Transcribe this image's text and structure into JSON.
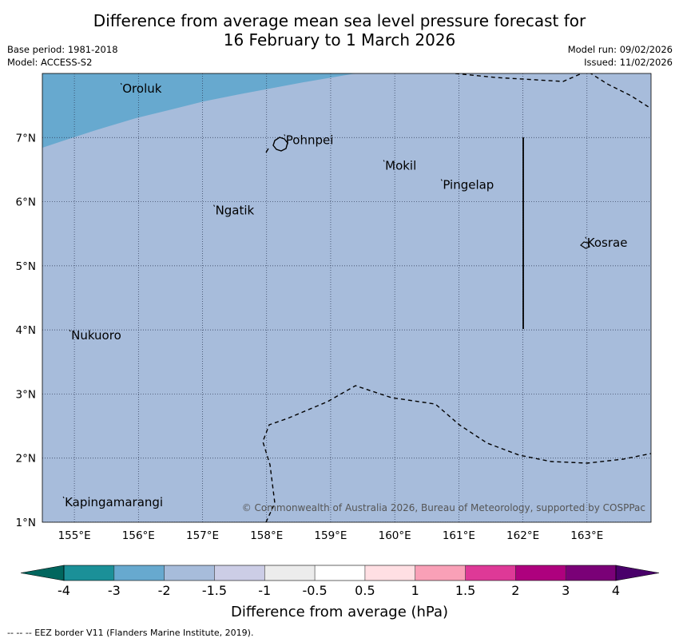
{
  "title": {
    "line1": "Difference from average mean sea level pressure forecast for",
    "line2": "16 February to 1 March 2026"
  },
  "meta": {
    "base_period": "Base period: 1981-2018",
    "model": "Model: ACCESS-S2",
    "model_run": "Model run: 09/02/2026",
    "issued": "Issued: 11/02/2026"
  },
  "map": {
    "lon_range": [
      154.5,
      164.0
    ],
    "lat_range": [
      1.0,
      8.0
    ],
    "lon_ticks": [
      {
        "value": 155,
        "label": "155°E"
      },
      {
        "value": 156,
        "label": "156°E"
      },
      {
        "value": 157,
        "label": "157°E"
      },
      {
        "value": 158,
        "label": "158°E"
      },
      {
        "value": 159,
        "label": "159°E"
      },
      {
        "value": 160,
        "label": "160°E"
      },
      {
        "value": 161,
        "label": "161°E"
      },
      {
        "value": 162,
        "label": "162°E"
      },
      {
        "value": 163,
        "label": "163°E"
      }
    ],
    "lat_ticks": [
      {
        "value": 1,
        "label": "1°N"
      },
      {
        "value": 2,
        "label": "2°N"
      },
      {
        "value": 3,
        "label": "3°N"
      },
      {
        "value": 4,
        "label": "4°N"
      },
      {
        "value": 5,
        "label": "5°N"
      },
      {
        "value": 6,
        "label": "6°N"
      },
      {
        "value": 7,
        "label": "7°N"
      }
    ],
    "places": [
      {
        "name": "Oroluk",
        "lon": 155.75,
        "lat": 7.7
      },
      {
        "name": "Pohnpei",
        "lon": 158.3,
        "lat": 6.9
      },
      {
        "name": "Mokil",
        "lon": 159.85,
        "lat": 6.5
      },
      {
        "name": "Pingelap",
        "lon": 160.75,
        "lat": 6.2
      },
      {
        "name": "Ngatik",
        "lon": 157.2,
        "lat": 5.8
      },
      {
        "name": "Kosrae",
        "lon": 163.0,
        "lat": 5.3
      },
      {
        "name": "Nukuoro",
        "lon": 154.95,
        "lat": 3.85
      },
      {
        "name": "Kapingamarangi",
        "lon": 154.85,
        "lat": 1.25
      }
    ],
    "fill_values_hPa": {
      "background": -1.75,
      "northwest_region": -2.5
    },
    "credit": "© Commonwealth of Australia 2026, Bureau of Meteorology, supported by COSPPac"
  },
  "colorbar": {
    "title": "Difference from average (hPa)",
    "boundaries": [
      "-4",
      "-3",
      "-2",
      "-1.5",
      "-1",
      "-0.5",
      "0.5",
      "1",
      "1.5",
      "2",
      "3",
      "4"
    ],
    "colors": [
      "#1b9098",
      "#67a9cf",
      "#a7bcdb",
      "#cccde6",
      "#ececec",
      "#ffffff",
      "#ffdfe3",
      "#f9a0b7",
      "#de3997",
      "#ae017e",
      "#7a0177"
    ],
    "extend_low_color": "#01665e",
    "extend_high_color": "#49006a"
  },
  "footer": "--  --  -- EEZ border V11 (Flanders Marine Institute, 2019)."
}
